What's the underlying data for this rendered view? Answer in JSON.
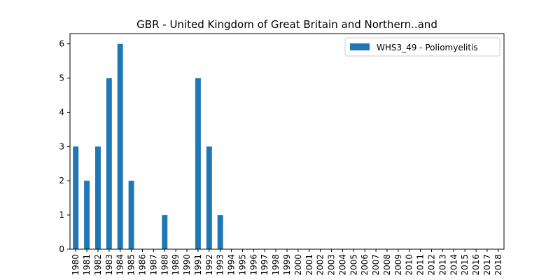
{
  "chart_data": {
    "type": "bar",
    "title": "GBR - United Kingdom of Great Britain and Northern..and",
    "xlabel": "",
    "ylabel": "",
    "categories": [
      "1980",
      "1981",
      "1982",
      "1983",
      "1984",
      "1985",
      "1986",
      "1987",
      "1988",
      "1989",
      "1990",
      "1991",
      "1992",
      "1993",
      "1994",
      "1995",
      "1996",
      "1997",
      "1998",
      "1999",
      "2000",
      "2001",
      "2002",
      "2003",
      "2004",
      "2005",
      "2006",
      "2007",
      "2008",
      "2009",
      "2010",
      "2011",
      "2012",
      "2013",
      "2014",
      "2015",
      "2016",
      "2017",
      "2018"
    ],
    "series": [
      {
        "name": "WHS3_49 - Poliomyelitis",
        "color": "#1f77b4",
        "values": [
          3,
          2,
          3,
          5,
          6,
          2,
          0,
          0,
          1,
          0,
          0,
          5,
          3,
          1,
          0,
          0,
          0,
          0,
          0,
          0,
          0,
          0,
          0,
          0,
          0,
          0,
          0,
          0,
          0,
          0,
          0,
          0,
          0,
          0,
          0,
          0,
          0,
          0,
          0
        ]
      }
    ],
    "ylim": [
      0,
      6.3
    ],
    "yticks": [
      0,
      1,
      2,
      3,
      4,
      5,
      6
    ],
    "grid": false,
    "legend": "top-right"
  }
}
